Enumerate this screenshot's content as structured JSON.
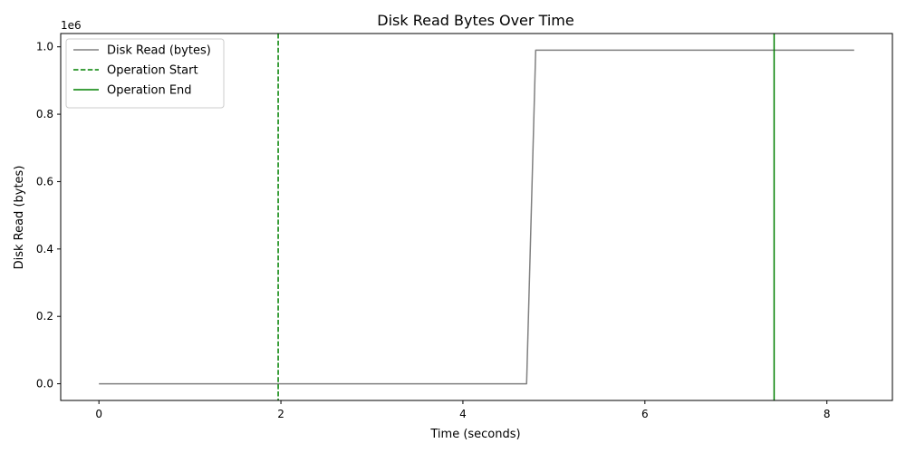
{
  "chart_data": {
    "type": "line",
    "title": "Disk Read Bytes Over Time",
    "xlabel": "Time (seconds)",
    "ylabel": "Disk Read (bytes)",
    "y_offset_text": "1e6",
    "y_multiplier": 1000000,
    "xlim": [
      -0.42,
      8.72
    ],
    "ylim": [
      -0.0495,
      1.0395
    ],
    "x_ticks": [
      0,
      2,
      4,
      6,
      8
    ],
    "x_tick_labels": [
      "0",
      "2",
      "4",
      "6",
      "8"
    ],
    "y_ticks": [
      0.0,
      0.2,
      0.4,
      0.6,
      0.8,
      1.0
    ],
    "y_tick_labels": [
      "0.0",
      "0.2",
      "0.4",
      "0.6",
      "0.8",
      "1.0"
    ],
    "grid": false,
    "legend_position": "upper-left",
    "series": [
      {
        "name": "Disk Read (bytes)",
        "color": "#808080",
        "style": "solid",
        "x": [
          0,
          4.7,
          4.8,
          8.3
        ],
        "y": [
          0,
          0,
          0.99,
          0.99
        ]
      }
    ],
    "vlines": [
      {
        "name": "Operation Start",
        "x": 1.97,
        "color": "#008000",
        "style": "dashed"
      },
      {
        "name": "Operation End",
        "x": 7.42,
        "color": "#008000",
        "style": "solid"
      }
    ]
  }
}
